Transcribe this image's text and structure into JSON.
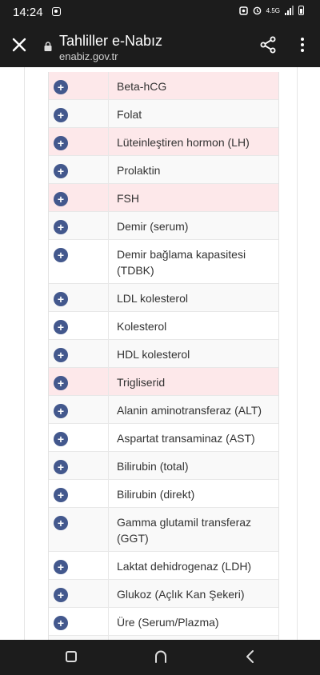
{
  "status": {
    "time": "14:24",
    "network": "4.5G"
  },
  "app_bar": {
    "title": "Tahliller e-Nabız",
    "url": "enabiz.gov.tr"
  },
  "tests": [
    {
      "name": "Beta-hCG",
      "highlight": true
    },
    {
      "name": "Folat",
      "highlight": false
    },
    {
      "name": "Lüteinleştiren hormon (LH)",
      "highlight": true
    },
    {
      "name": "Prolaktin",
      "highlight": false
    },
    {
      "name": "FSH",
      "highlight": true
    },
    {
      "name": "Demir (serum)",
      "highlight": false
    },
    {
      "name": "Demir bağlama kapasitesi (TDBK)",
      "highlight": false
    },
    {
      "name": "LDL kolesterol",
      "highlight": false
    },
    {
      "name": "Kolesterol",
      "highlight": false
    },
    {
      "name": "HDL kolesterol",
      "highlight": false
    },
    {
      "name": "Trigliserid",
      "highlight": true
    },
    {
      "name": "Alanin aminotransferaz (ALT)",
      "highlight": false
    },
    {
      "name": "Aspartat transaminaz (AST)",
      "highlight": false
    },
    {
      "name": "Bilirubin (total)",
      "highlight": false
    },
    {
      "name": "Bilirubin (direkt)",
      "highlight": false
    },
    {
      "name": "Gamma glutamil transferaz (GGT)",
      "highlight": false
    },
    {
      "name": "Laktat dehidrogenaz (LDH)",
      "highlight": false
    },
    {
      "name": "Glukoz (Açlık Kan Şekeri)",
      "highlight": false
    },
    {
      "name": "Üre (Serum/Plazma)",
      "highlight": false
    },
    {
      "name": "",
      "highlight": false
    }
  ],
  "expand_symbol": "+",
  "colors": {
    "highlight_row": "#fde8ea",
    "expand_button": "#43588d",
    "chrome": "#1c1c1c"
  },
  "icons": {
    "close": "close-icon",
    "lock": "lock-icon",
    "share": "share-icon",
    "more": "more-vert-icon",
    "plus": "plus-circle-icon"
  }
}
